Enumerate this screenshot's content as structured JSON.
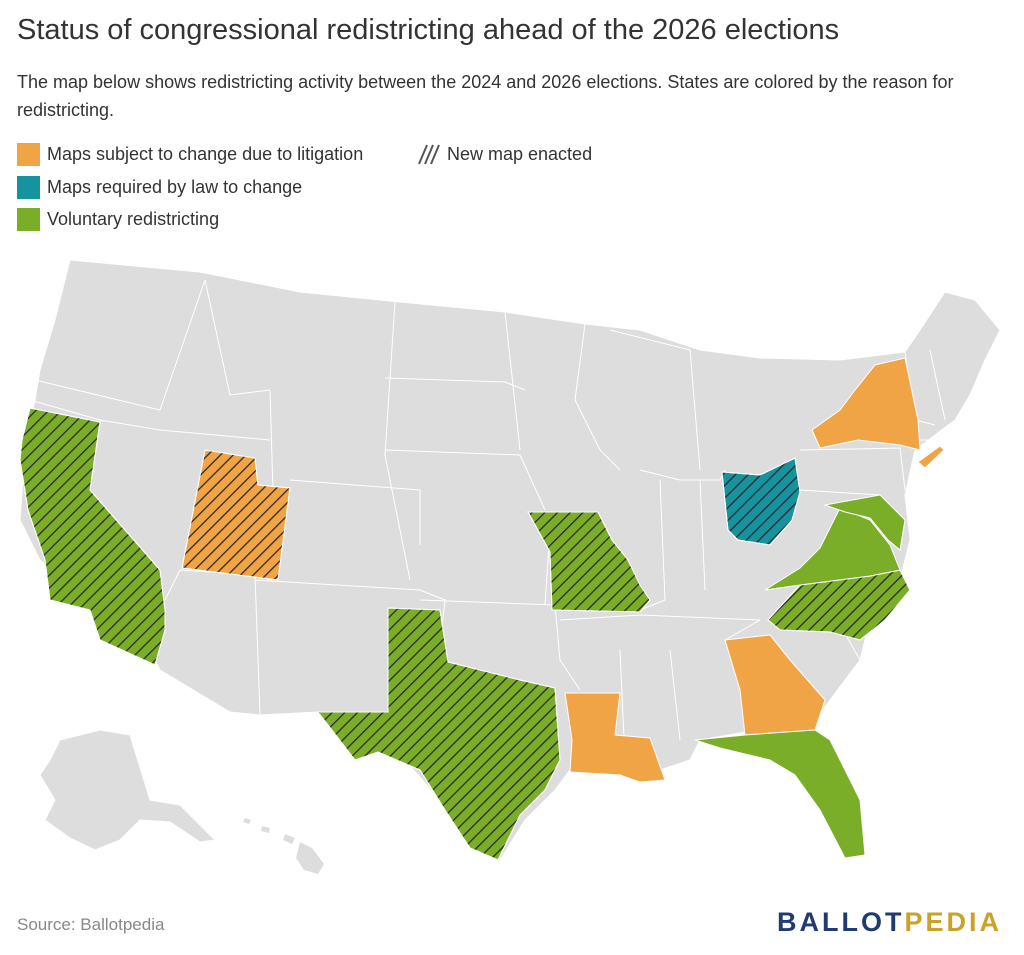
{
  "title": "Status of congressional redistricting ahead of the 2026 elections",
  "subtitle": "The map below shows redistricting activity between the 2024 and 2026 elections. States are colored by the reason for redistricting.",
  "legend": {
    "litigation": "Maps subject to change due to litigation",
    "required": "Maps required by law to change",
    "voluntary": "Voluntary redistricting",
    "enacted": "New map enacted"
  },
  "colors": {
    "litigation": "#f0a445",
    "required": "#16939e",
    "voluntary": "#7aad28",
    "default": "#dddddd",
    "hatch": "#2a2a2a"
  },
  "map_data": {
    "states": [
      {
        "name": "California",
        "status": "voluntary",
        "new_map": true
      },
      {
        "name": "Utah",
        "status": "litigation",
        "new_map": true
      },
      {
        "name": "Texas",
        "status": "voluntary",
        "new_map": true
      },
      {
        "name": "Missouri",
        "status": "voluntary",
        "new_map": true
      },
      {
        "name": "Louisiana",
        "status": "litigation",
        "new_map": false
      },
      {
        "name": "Ohio",
        "status": "required",
        "new_map": true
      },
      {
        "name": "North Carolina",
        "status": "voluntary",
        "new_map": true
      },
      {
        "name": "Virginia",
        "status": "voluntary",
        "new_map": false
      },
      {
        "name": "Maryland",
        "status": "voluntary",
        "new_map": false
      },
      {
        "name": "Georgia",
        "status": "litigation",
        "new_map": false
      },
      {
        "name": "Florida",
        "status": "voluntary",
        "new_map": false
      },
      {
        "name": "New York",
        "status": "litigation",
        "new_map": false
      }
    ]
  },
  "footer": {
    "source": "Source: Ballotpedia",
    "brand_main": "BALLOT",
    "brand_accent": "PEDIA"
  }
}
